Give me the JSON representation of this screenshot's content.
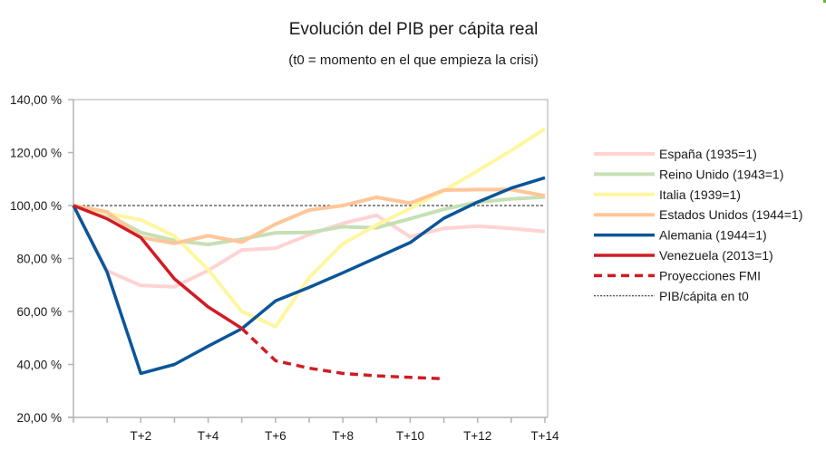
{
  "chart_data": {
    "type": "line",
    "title": "Evolución del PIB per cápita real",
    "subtitle": "(t0 = momento en el que empieza la crisi)",
    "xlabel": "",
    "ylabel": "",
    "x": [
      "T0",
      "T+1",
      "T+2",
      "T+3",
      "T+4",
      "T+5",
      "T+6",
      "T+7",
      "T+8",
      "T+9",
      "T+10",
      "T+11",
      "T+12",
      "T+13",
      "T+14"
    ],
    "x_tick_labels": [
      {
        "index": 2,
        "label": "T+2"
      },
      {
        "index": 4,
        "label": "T+4"
      },
      {
        "index": 6,
        "label": "T+6"
      },
      {
        "index": 8,
        "label": "T+8"
      },
      {
        "index": 10,
        "label": "T+10"
      },
      {
        "index": 12,
        "label": "T+12"
      },
      {
        "index": 14,
        "label": "T+14"
      }
    ],
    "ylim": [
      20,
      140
    ],
    "y_ticks": [
      {
        "value": 20,
        "label": "20,00 %"
      },
      {
        "value": 40,
        "label": "40,00 %"
      },
      {
        "value": 60,
        "label": "60,00 %"
      },
      {
        "value": 80,
        "label": "80,00 %"
      },
      {
        "value": 100,
        "label": "100,00 %"
      },
      {
        "value": 120,
        "label": "120,00 %"
      },
      {
        "value": 140,
        "label": "140,00 %"
      }
    ],
    "grid": false,
    "legend_position": "right",
    "series": [
      {
        "name": "España (1935=1)",
        "color": "#ffd3d3",
        "style": "solid",
        "weight": "light",
        "start": 0,
        "values": [
          100,
          75.4,
          69.8,
          69.3,
          75.5,
          83.2,
          83.9,
          89.0,
          93.3,
          96.3,
          88.2,
          91.4,
          92.2,
          91.4,
          90.2
        ]
      },
      {
        "name": "Reino Unido (1943=1)",
        "color": "#c6e0b4",
        "style": "solid",
        "weight": "light",
        "start": 0,
        "values": [
          100,
          96.6,
          89.8,
          86.8,
          85.3,
          87.3,
          89.7,
          89.8,
          92.0,
          91.6,
          95.0,
          98.6,
          101.3,
          102.5,
          103.2
        ]
      },
      {
        "name": "Italia (1939=1)",
        "color": "#fff6a0",
        "style": "solid",
        "weight": "light",
        "start": 0,
        "values": [
          100,
          97.1,
          94.6,
          88.5,
          75.8,
          60.0,
          54.3,
          72.8,
          85.6,
          92.6,
          98.9,
          105.7,
          113.1,
          120.8,
          129.0
        ]
      },
      {
        "name": "Estados Unidos (1944=1)",
        "color": "#ffc699",
        "style": "solid",
        "weight": "light",
        "start": 0,
        "values": [
          100,
          97.6,
          88.0,
          85.7,
          88.6,
          86.2,
          93.0,
          98.3,
          100.0,
          103.1,
          100.9,
          105.8,
          106.0,
          106.0,
          103.7
        ]
      },
      {
        "name": "Alemania (1944=1)",
        "color": "#0b5599",
        "style": "solid",
        "weight": "bold",
        "start": 0,
        "values": [
          100,
          74.9,
          36.6,
          40.0,
          46.9,
          53.5,
          64.0,
          69.1,
          74.6,
          80.3,
          86.0,
          95.2,
          101.3,
          106.6,
          110.5
        ]
      },
      {
        "name": "Venezuela (2013=1)",
        "color": "#d01c24",
        "style": "solid",
        "weight": "bold",
        "start": 0,
        "values": [
          100,
          95.0,
          87.9,
          72.3,
          61.7,
          53.6
        ]
      },
      {
        "name": "Proyecciones FMI",
        "color": "#d01c24",
        "style": "dashed",
        "weight": "bold",
        "start": 5,
        "values": [
          53.6,
          41.4,
          38.6,
          36.6,
          35.7,
          35.1,
          34.6
        ]
      },
      {
        "name": "PIB/cápita en t0",
        "color": "#1a1a1a",
        "style": "dotted",
        "weight": "hair",
        "start": 0,
        "values": [
          100,
          100,
          100,
          100,
          100,
          100,
          100,
          100,
          100,
          100,
          100,
          100,
          100,
          100,
          100
        ]
      }
    ]
  }
}
